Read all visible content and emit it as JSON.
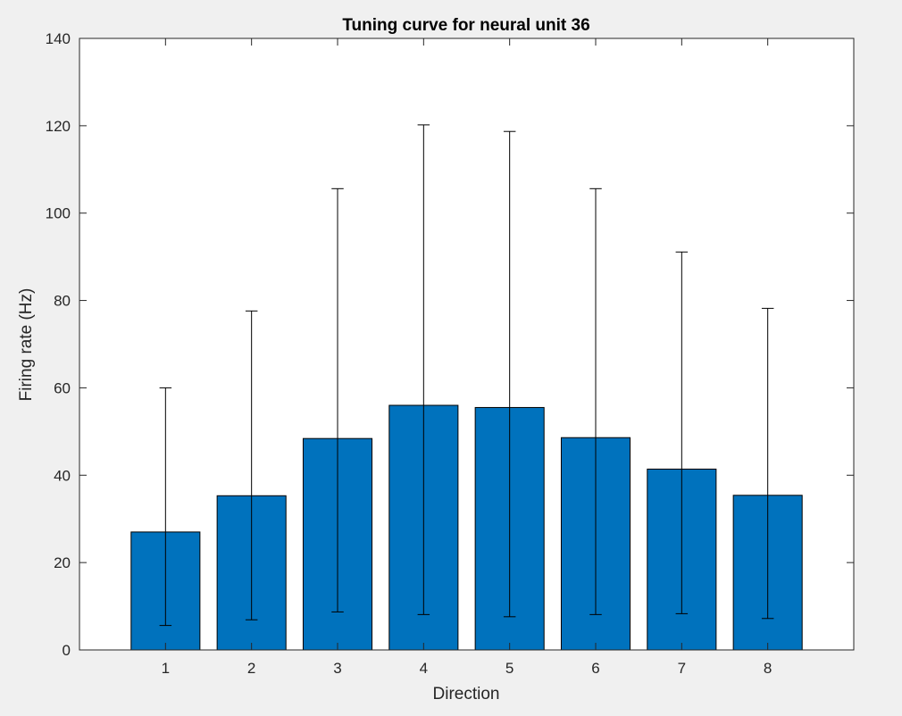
{
  "chart_data": {
    "type": "bar",
    "title": "Tuning curve for neural unit 36",
    "xlabel": "Direction",
    "ylabel": "Firing rate (Hz)",
    "categories": [
      "1",
      "2",
      "3",
      "4",
      "5",
      "6",
      "7",
      "8"
    ],
    "values": [
      27.0,
      35.3,
      48.4,
      56.0,
      55.5,
      48.6,
      41.4,
      35.4
    ],
    "error_bars": {
      "lower": [
        5.6,
        6.9,
        8.7,
        8.1,
        7.6,
        8.1,
        8.3,
        7.2
      ],
      "upper": [
        60.0,
        77.6,
        105.6,
        120.2,
        118.7,
        105.6,
        91.1,
        78.2
      ]
    },
    "xlim": [
      0,
      9
    ],
    "ylim": [
      0,
      140
    ],
    "yticks": [
      0,
      20,
      40,
      60,
      80,
      100,
      120,
      140
    ],
    "grid": false,
    "legend": "none",
    "colors": {
      "bar_fill": "#0072bd",
      "bar_edge": "#000000",
      "error_bar": "#000000",
      "axes": "#262626",
      "axes_background": "#ffffff",
      "figure_background": "#f0f0f0"
    }
  }
}
